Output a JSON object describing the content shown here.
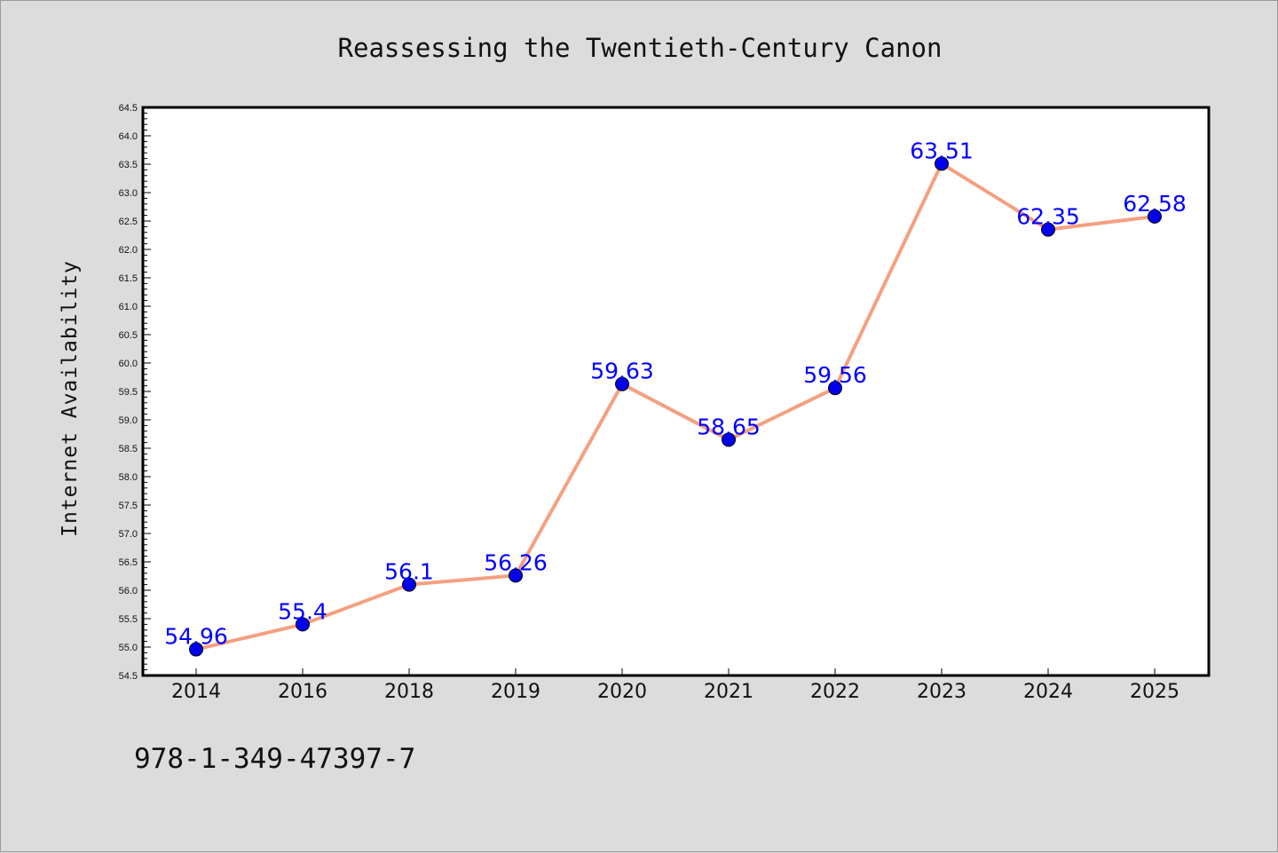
{
  "chart_data": {
    "type": "line",
    "title": "Reassessing the Twentieth-Century Canon",
    "xlabel": "",
    "ylabel": "Internet Availability",
    "categories": [
      "2014",
      "2016",
      "2018",
      "2019",
      "2020",
      "2021",
      "2022",
      "2023",
      "2024",
      "2025"
    ],
    "series": [
      {
        "values": [
          54.96,
          55.4,
          56.1,
          56.26,
          59.63,
          58.65,
          59.56,
          63.51,
          62.35,
          62.58
        ]
      }
    ],
    "data_labels": [
      "54.96",
      "55.4",
      "56.1",
      "56.26",
      "59.63",
      "58.65",
      "59.56",
      "63.51",
      "62.35",
      "62.58"
    ],
    "ylim": [
      54.5,
      64.5
    ],
    "yticks": [
      "54.5",
      "55.0",
      "55.5",
      "56.0",
      "56.5",
      "57.0",
      "57.5",
      "58.0",
      "58.5",
      "59.0",
      "59.5",
      "60.0",
      "60.5",
      "61.0",
      "61.5",
      "62.0",
      "62.5",
      "63.0",
      "63.5",
      "64.0",
      "64.5"
    ],
    "grid": false,
    "legend": "none",
    "colors": {
      "line": "#f4a080",
      "marker": "#0000ee",
      "labels": "#0000ff",
      "background": "#dcdcdc",
      "plot_background": "#ffffff"
    }
  },
  "footer_text": "978-1-349-47397-7"
}
